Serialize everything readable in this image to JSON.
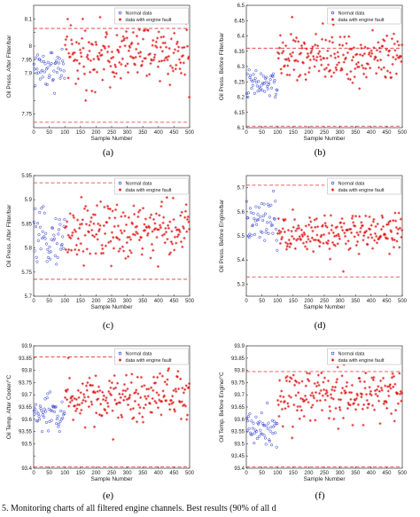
{
  "caption": "5. Monitoring charts of all filtered engine channels. Best results (90% of all d",
  "chart_data": [
    {
      "type": "scatter",
      "panel_label": "(a)",
      "xlabel": "Sample Number",
      "ylabel": "Oil Press. After Filter/bar",
      "xlim": [
        0,
        500
      ],
      "ylim": [
        7.7,
        8.15
      ],
      "xticks": [
        0,
        50,
        100,
        150,
        200,
        250,
        300,
        350,
        400,
        450,
        500
      ],
      "yticks": [
        7.75,
        7.8,
        7.85,
        7.9,
        7.95,
        8,
        8.05,
        8.1
      ],
      "ytick_labels": [
        "7.75",
        "",
        "",
        "7.9",
        "7.95",
        "8",
        "",
        "8.1"
      ],
      "thresholds": [
        8.065,
        7.72
      ],
      "legend": [
        "Normal data",
        "data with engine fault"
      ],
      "series": [
        {
          "name": "Normal data",
          "color": "#2233cc",
          "marker": "circle",
          "x_range": [
            0,
            100
          ],
          "center": 7.92,
          "spread": 0.04
        },
        {
          "name": "data with engine fault",
          "color": "#dd1111",
          "marker": "star",
          "x_range": [
            100,
            500
          ],
          "center": 7.97,
          "spread": 0.05
        }
      ]
    },
    {
      "type": "scatter",
      "panel_label": "(b)",
      "xlabel": "Sample Number",
      "ylabel": "Oil Press. Before Filter/bar",
      "xlim": [
        0,
        500
      ],
      "ylim": [
        6.1,
        6.5
      ],
      "xticks": [
        0,
        50,
        100,
        150,
        200,
        250,
        300,
        350,
        400,
        450,
        500
      ],
      "yticks": [
        6.1,
        6.15,
        6.2,
        6.25,
        6.3,
        6.35,
        6.4,
        6.45,
        6.5
      ],
      "ytick_labels": [
        "6.1",
        "6.15",
        "6.2",
        "6.25",
        "6.3",
        "6.35",
        "6.4",
        "6.45",
        "6.5"
      ],
      "thresholds": [
        6.36,
        6.105
      ],
      "legend": [
        "Normal data",
        "data with engine fault"
      ],
      "series": [
        {
          "name": "Normal data",
          "color": "#2233cc",
          "marker": "circle",
          "x_range": [
            0,
            100
          ],
          "center": 6.24,
          "spread": 0.025
        },
        {
          "name": "data with engine fault",
          "color": "#dd1111",
          "marker": "star",
          "x_range": [
            100,
            500
          ],
          "center": 6.33,
          "spread": 0.035
        }
      ]
    },
    {
      "type": "scatter",
      "panel_label": "(c)",
      "xlabel": "Sample Number",
      "ylabel": "Oil Press. After Filter/bar",
      "xlim": [
        0,
        500
      ],
      "ylim": [
        5.7,
        5.95
      ],
      "xticks": [
        0,
        50,
        100,
        150,
        200,
        250,
        300,
        350,
        400,
        450,
        500
      ],
      "yticks": [
        5.7,
        5.75,
        5.8,
        5.85,
        5.9,
        5.95
      ],
      "ytick_labels": [
        "5.7",
        "5.75",
        "5.8",
        "5.85",
        "5.9",
        "5.95"
      ],
      "thresholds": [
        5.935,
        5.735
      ],
      "legend": [
        "Normal data",
        "data with engine fault"
      ],
      "series": [
        {
          "name": "Normal data",
          "color": "#2233cc",
          "marker": "circle",
          "x_range": [
            0,
            100
          ],
          "center": 5.82,
          "spread": 0.025
        },
        {
          "name": "data with engine fault",
          "color": "#dd1111",
          "marker": "star",
          "x_range": [
            100,
            500
          ],
          "center": 5.835,
          "spread": 0.03
        }
      ]
    },
    {
      "type": "scatter",
      "panel_label": "(d)",
      "xlabel": "Sample Number",
      "ylabel": "Oil Press. Before Engine/bar",
      "xlim": [
        0,
        500
      ],
      "ylim": [
        5.25,
        5.75
      ],
      "xticks": [
        0,
        50,
        100,
        150,
        200,
        250,
        300,
        350,
        400,
        450,
        500
      ],
      "yticks": [
        5.3,
        5.4,
        5.5,
        5.6,
        5.7
      ],
      "ytick_labels": [
        "5.3",
        "5.4",
        "5.5",
        "5.6",
        "5.7"
      ],
      "thresholds": [
        5.71,
        5.33
      ],
      "legend": [
        "Normal data",
        "data with engine fault"
      ],
      "series": [
        {
          "name": "Normal data",
          "color": "#2233cc",
          "marker": "circle",
          "x_range": [
            0,
            100
          ],
          "center": 5.55,
          "spread": 0.05
        },
        {
          "name": "data with engine fault",
          "color": "#dd1111",
          "marker": "star",
          "x_range": [
            100,
            500
          ],
          "center": 5.51,
          "spread": 0.04
        }
      ]
    },
    {
      "type": "scatter",
      "panel_label": "(e)",
      "xlabel": "Sample Number",
      "ylabel": "Oil Temp. After Cooler/°C",
      "xlim": [
        0,
        500
      ],
      "ylim": [
        93.4,
        93.9
      ],
      "xticks": [
        0,
        50,
        100,
        150,
        200,
        250,
        300,
        350,
        400,
        450,
        500
      ],
      "yticks": [
        93.4,
        93.45,
        93.5,
        93.55,
        93.6,
        93.65,
        93.7,
        93.75,
        93.8,
        93.85,
        93.9
      ],
      "ytick_labels": [
        "93.4",
        "",
        "93.5",
        "93.55",
        "93.6",
        "93.65",
        "93.7",
        "93.75",
        "93.8",
        "93.85",
        "93.9"
      ],
      "thresholds": [
        93.855,
        93.405
      ],
      "legend": [
        "Normal data",
        "data with engine fault"
      ],
      "series": [
        {
          "name": "Normal data",
          "color": "#2233cc",
          "marker": "circle",
          "x_range": [
            0,
            100
          ],
          "center": 93.62,
          "spread": 0.04
        },
        {
          "name": "data with engine fault",
          "color": "#dd1111",
          "marker": "star",
          "x_range": [
            100,
            500
          ],
          "center": 93.7,
          "spread": 0.05
        }
      ]
    },
    {
      "type": "scatter",
      "panel_label": "(f)",
      "xlabel": "Sample Number",
      "ylabel": "Oil Temp. Before Engine/°C",
      "xlim": [
        0,
        500
      ],
      "ylim": [
        93.4,
        93.9
      ],
      "xticks": [
        0,
        50,
        100,
        150,
        200,
        250,
        300,
        350,
        400,
        450,
        500
      ],
      "yticks": [
        93.4,
        93.45,
        93.5,
        93.55,
        93.6,
        93.65,
        93.7,
        93.75,
        93.8,
        93.85,
        93.9
      ],
      "ytick_labels": [
        "93.4",
        "93.45",
        "93.5",
        "93.55",
        "93.6",
        "93.65",
        "93.7",
        "93.75",
        "93.8",
        "93.85",
        "93.9"
      ],
      "thresholds": [
        93.795,
        93.405
      ],
      "legend": [
        "Normal data",
        "data with engine fault"
      ],
      "series": [
        {
          "name": "Normal data",
          "color": "#2233cc",
          "marker": "circle",
          "x_range": [
            0,
            100
          ],
          "center": 93.57,
          "spread": 0.04
        },
        {
          "name": "data with engine fault",
          "color": "#dd1111",
          "marker": "star",
          "x_range": [
            100,
            500
          ],
          "center": 93.7,
          "spread": 0.05
        }
      ]
    }
  ]
}
